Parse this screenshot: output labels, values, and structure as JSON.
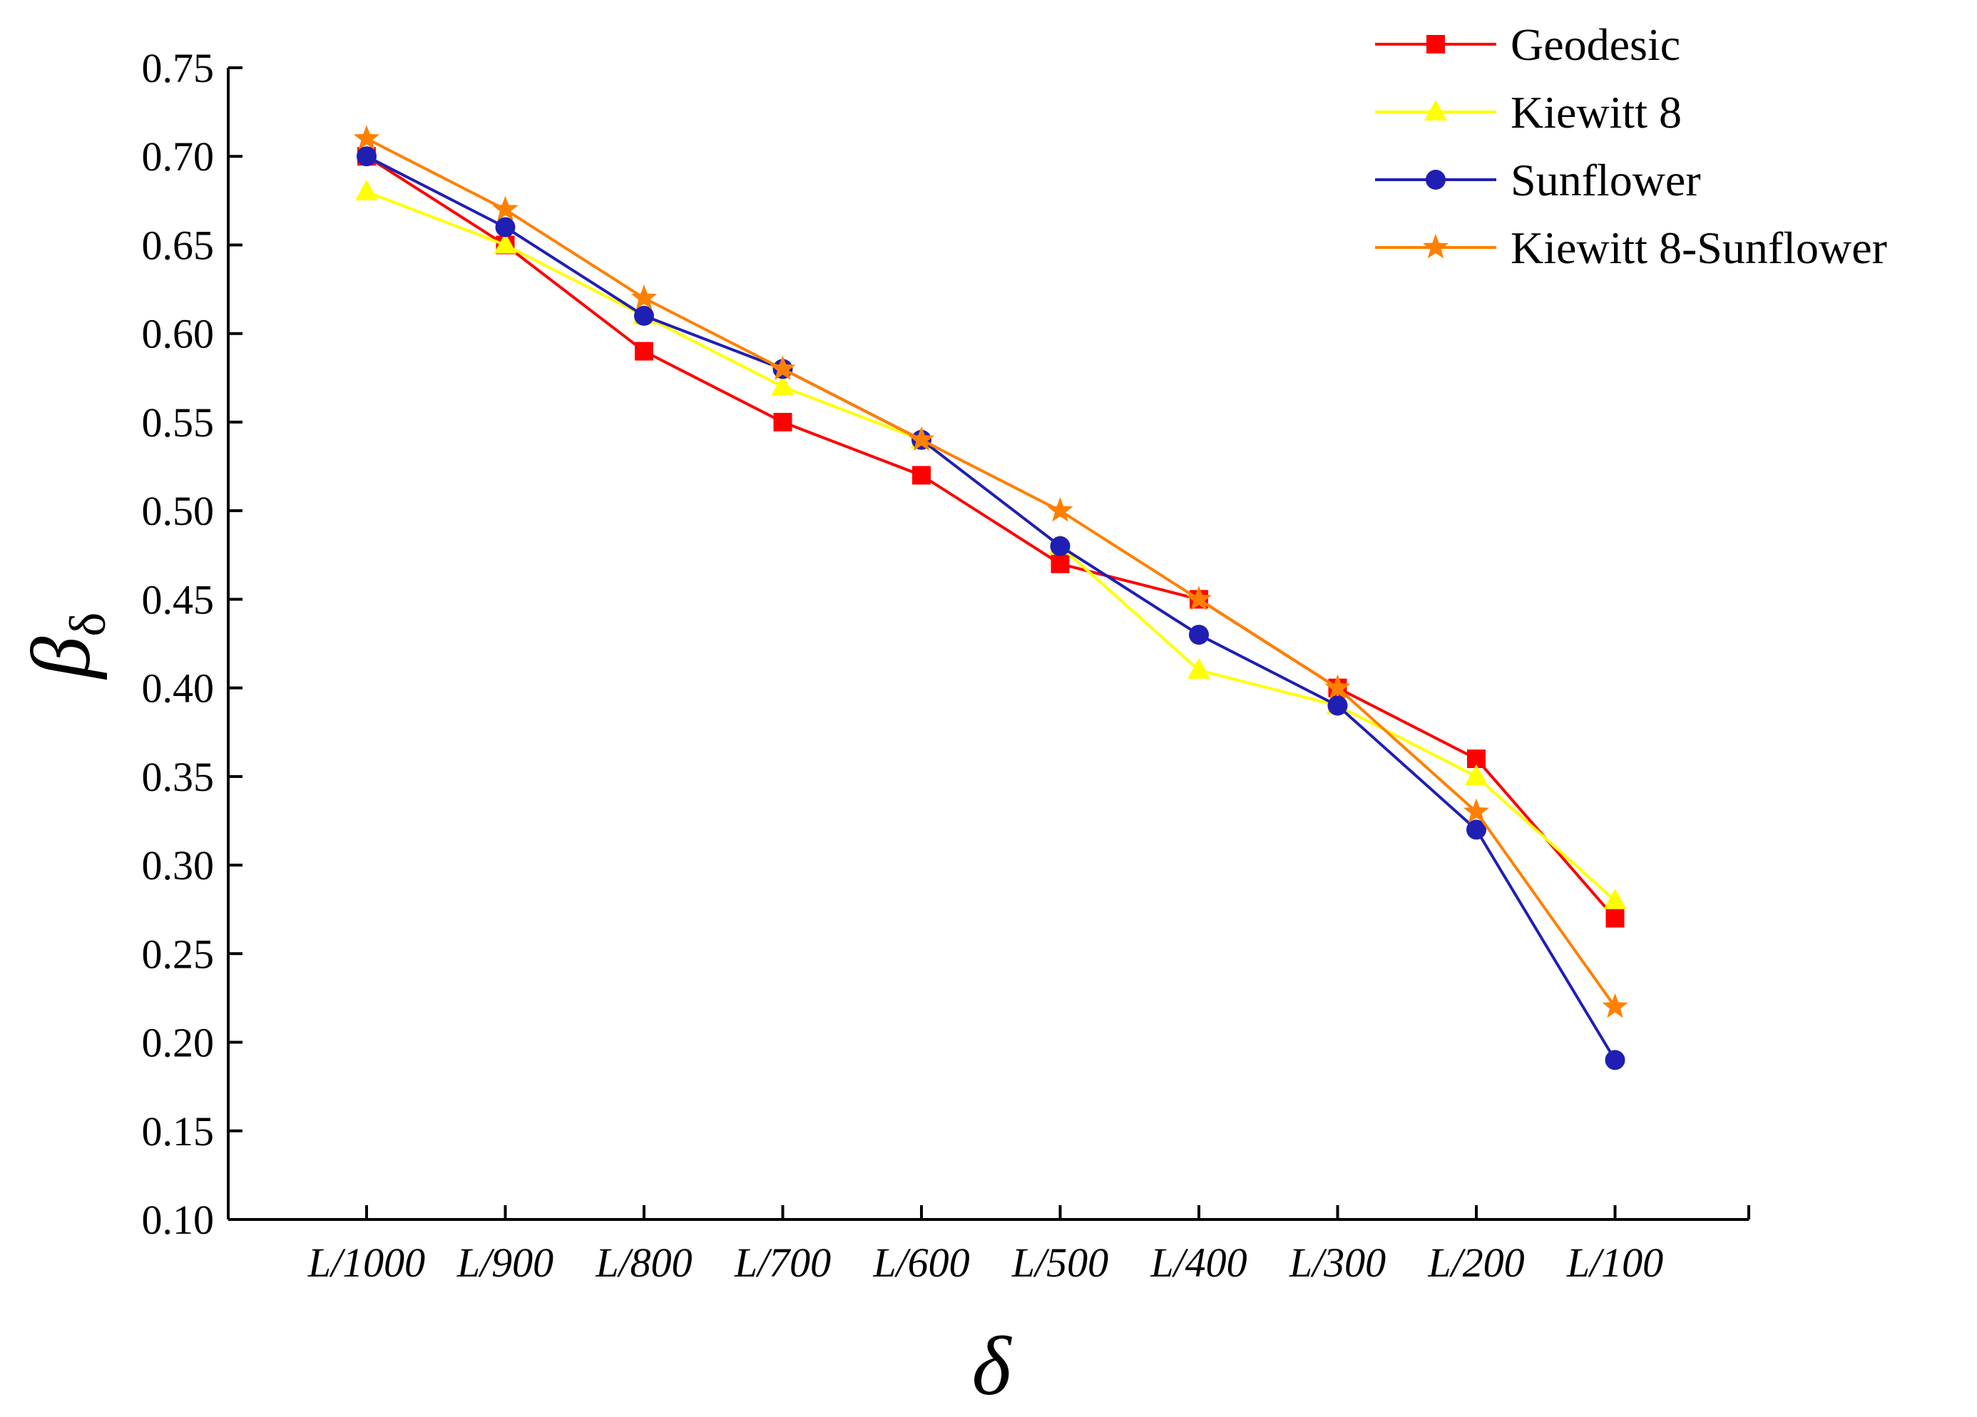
{
  "chart_data": {
    "type": "line",
    "title": "",
    "xlabel": "δ",
    "ylabel": {
      "main": "β",
      "subscript": "δ"
    },
    "categories": [
      "L/1000",
      "L/900",
      "L/800",
      "L/700",
      "L/600",
      "L/500",
      "L/400",
      "L/300",
      "L/200",
      "L/100"
    ],
    "ylim": [
      0.1,
      0.75
    ],
    "yticks": [
      "0.10",
      "0.15",
      "0.20",
      "0.25",
      "0.30",
      "0.35",
      "0.40",
      "0.45",
      "0.50",
      "0.55",
      "0.60",
      "0.65",
      "0.70",
      "0.75"
    ],
    "grid": false,
    "legend_position": "top-right",
    "series": [
      {
        "name": "Geodesic",
        "color": "#ff0000",
        "marker": "square",
        "values": [
          0.7,
          0.65,
          0.59,
          0.55,
          0.52,
          0.47,
          0.45,
          0.4,
          0.36,
          0.27
        ]
      },
      {
        "name": "Kiewitt 8",
        "color": "#ffff00",
        "marker": "triangle",
        "values": [
          0.68,
          0.65,
          0.61,
          0.57,
          0.54,
          0.48,
          0.41,
          0.39,
          0.35,
          0.28
        ]
      },
      {
        "name": "Sunflower",
        "color": "#1f1fb4",
        "marker": "circle",
        "values": [
          0.7,
          0.66,
          0.61,
          0.58,
          0.54,
          0.48,
          0.43,
          0.39,
          0.32,
          0.19
        ]
      },
      {
        "name": "Kiewitt 8-Sunflower",
        "color": "#ff8000",
        "marker": "star",
        "values": [
          0.71,
          0.67,
          0.62,
          0.58,
          0.54,
          0.5,
          0.45,
          0.4,
          0.33,
          0.22
        ]
      }
    ]
  }
}
